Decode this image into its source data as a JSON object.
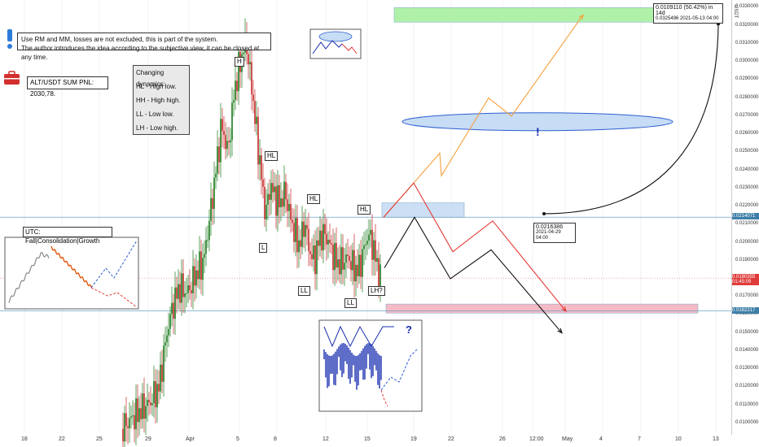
{
  "notes": {
    "system_lines": [
      "Use RM and MM, losses are not excluded, this is part of the system.",
      "The author introduces the idea according to the subjective view, it can be closed at any time."
    ],
    "pnl": "ALT/USDT SUM PNL: 2030,78.",
    "dynamics_title": "Changing dynamics:",
    "dynamics_items": [
      "HL - High low.",
      "HH - High high.",
      "LL - Low low.",
      "LH - Low high."
    ],
    "utc_label": "UTC: Fall|Consolidation|Growth"
  },
  "markers": [
    "H",
    "HL",
    "L",
    "HL",
    "HL",
    "LL",
    "LL",
    "LH?"
  ],
  "annotations": {
    "target": "0.0109110 (50.42%) in 14d",
    "target_sub": "0.0325496    2021-05-13  04:00",
    "base": "0.0216386",
    "base_sub": "2021-04-29 04:00",
    "excl": "!",
    "question": "?"
  },
  "axis": {
    "currency": "USDT",
    "price_ticks": [
      "0.0330000",
      "0.0320000",
      "0.0310000",
      "0.0300000",
      "0.0290000",
      "0.0280000",
      "0.0270000",
      "0.0260000",
      "0.0250000",
      "0.0240000",
      "0.0230000",
      "0.0220000",
      "0.0210000",
      "0.0200000",
      "0.0190000",
      "0.0180000",
      "0.0170000",
      "0.0160000",
      "0.0150000",
      "0.0140000",
      "0.0130000",
      "0.0120000",
      "0.0110000",
      "0.0100000"
    ],
    "date_ticks": [
      "18",
      "22",
      "25",
      "29",
      "Apr",
      "5",
      "8",
      "12",
      "15",
      "19",
      "22",
      "26",
      "12:00",
      "May",
      "4",
      "7",
      "10",
      "13"
    ],
    "price_labels": [
      {
        "value": "0.0214071",
        "color": "#3d7fa8"
      },
      {
        "value": "0.0180355",
        "sub": "01:45:09",
        "color": "#e03b3b"
      },
      {
        "value": "0.0162217",
        "color": "#3d7fa8"
      }
    ]
  },
  "chart_data": {
    "type": "candlestick",
    "ylim": [
      0.0095,
      0.0335
    ],
    "x_start": "2021-03-18",
    "x_end": "2021-05-13",
    "colors": {
      "up": "#1a7a1a",
      "down": "#c62828",
      "up_light": "#222222"
    },
    "candles_summary": "4h candles rising from ~0.0095 (Mar 26) to peak ~0.0312 (Apr 5), then declining into range 0.0175-0.0230",
    "levels": [
      0.0214071,
      0.0162217,
      0.0180355
    ],
    "zones": [
      {
        "name": "target",
        "color": "#a8f0a0",
        "from": 0.0322,
        "to": 0.033
      },
      {
        "name": "support",
        "color": "#f6b3be",
        "from": 0.0161,
        "to": 0.0166
      },
      {
        "name": "entry",
        "color": "#c7dcf5",
        "from": 0.0214,
        "to": 0.0222
      }
    ],
    "scenario_paths": [
      {
        "name": "orange",
        "color": "#f5a03c",
        "points": [
          [
            0.0214
          ],
          [
            0.0245
          ],
          [
            0.0237
          ],
          [
            0.0275
          ],
          [
            0.0269
          ],
          [
            0.0322
          ]
        ]
      },
      {
        "name": "red",
        "color": "#e53935",
        "points": [
          [
            0.0214
          ],
          [
            0.0233
          ],
          [
            0.0195
          ],
          [
            0.021
          ],
          [
            0.0162
          ]
        ]
      },
      {
        "name": "black",
        "color": "#111111",
        "points": [
          [
            0.0185
          ],
          [
            0.0214
          ],
          [
            0.018
          ],
          [
            0.0196
          ],
          [
            0.015
          ]
        ]
      }
    ]
  }
}
